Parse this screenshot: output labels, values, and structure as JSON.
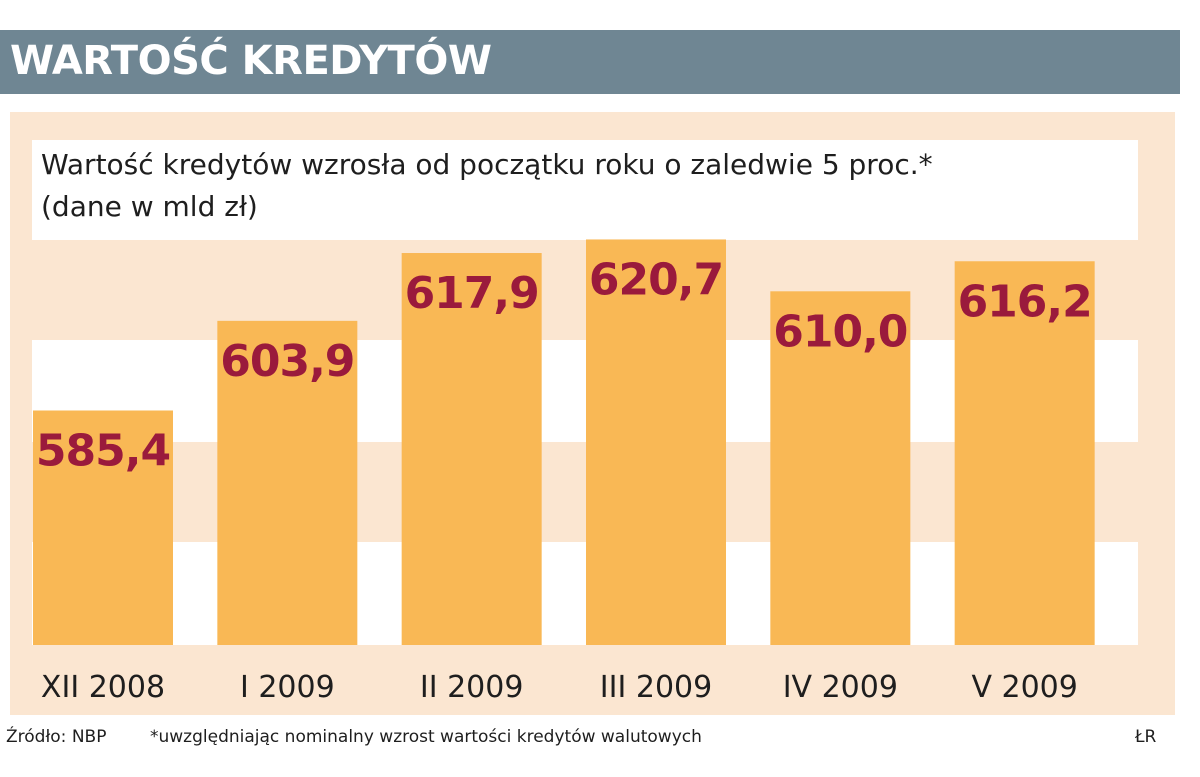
{
  "header": {
    "title": "WARTOŚĆ KREDYTÓW"
  },
  "subtitle": {
    "line1": "Wartość kredytów wzrosła od początku roku o zaledwie 5 proc.*",
    "line2": "(dane w mld zł)"
  },
  "chart_data": {
    "type": "bar",
    "categories": [
      "XII 2008",
      "I 2009",
      "II 2009",
      "III 2009",
      "IV 2009",
      "V 2009"
    ],
    "values": [
      585.4,
      603.9,
      617.9,
      620.7,
      610.0,
      616.2
    ],
    "value_labels": [
      "585,4",
      "603,9",
      "617,9",
      "620,7",
      "610,0",
      "616,2"
    ],
    "ylim": [
      537,
      621
    ],
    "grid": true,
    "legend": "none",
    "colors": {
      "bar": "#f9b855",
      "label": "#9a1a3c",
      "grid": "#ffffff"
    }
  },
  "footer": {
    "source": "Źródło: NBP",
    "note": "*uwzględniając nominalny wzrost wartości kredytów walutowych",
    "author": "ŁR"
  }
}
